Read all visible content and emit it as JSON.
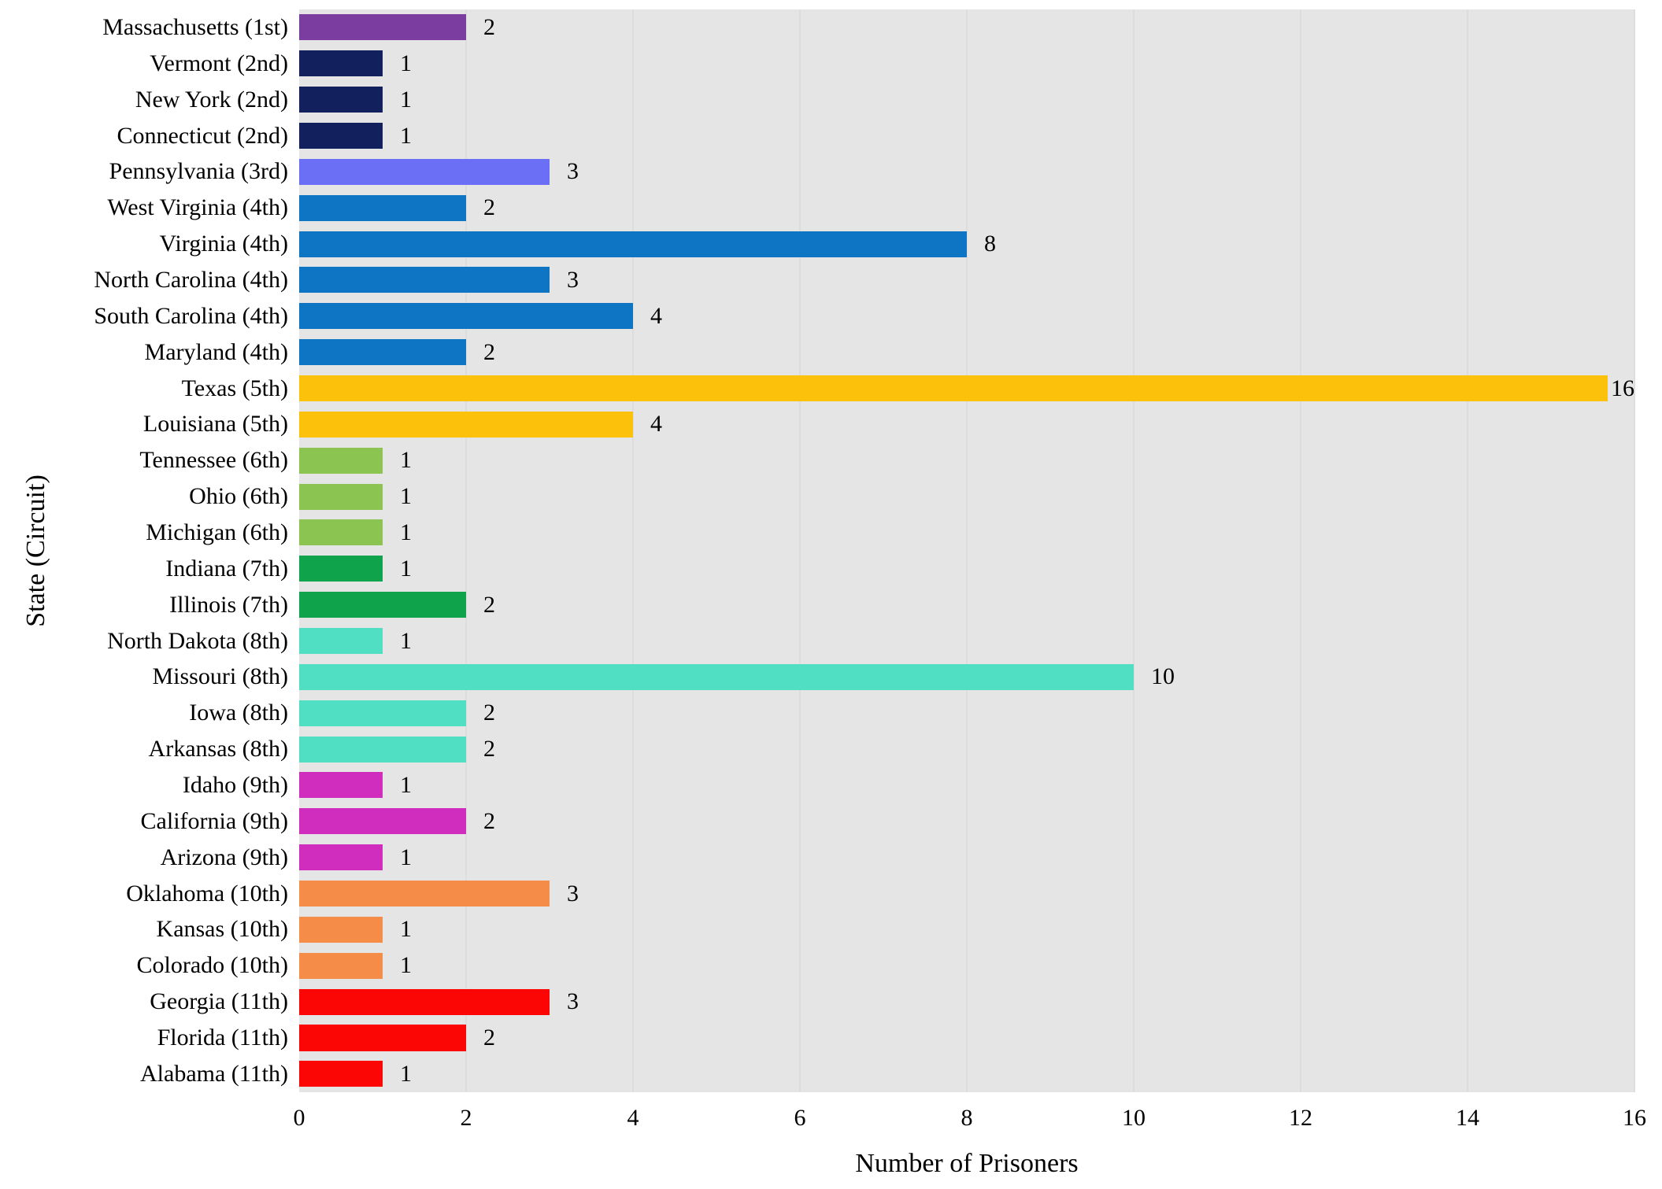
{
  "chart_data": {
    "type": "bar",
    "orientation": "horizontal",
    "title": "",
    "xlabel": "Number of Prisoners",
    "ylabel": "State (Circuit)",
    "xlim": [
      0,
      16
    ],
    "xticks": [
      0,
      2,
      4,
      6,
      8,
      10,
      12,
      14,
      16
    ],
    "grid": "vertical",
    "legend": "none",
    "plot_background": "#e5e5e5",
    "gridline_color": "#dddddd",
    "label_color": "#000000",
    "circuit_colors": {
      "1st": "#7b3da0",
      "2nd": "#12205e",
      "3rd": "#6a6ff5",
      "4th": "#0e75c5",
      "5th": "#fcc20b",
      "6th": "#8bc451",
      "7th": "#0fa34b",
      "8th": "#50dfc3",
      "9th": "#d02cbe",
      "10th": "#f58d49",
      "11th": "#fb0505"
    },
    "bars": [
      {
        "label": "Massachusetts (1st)",
        "circuit": "1st",
        "value": 2
      },
      {
        "label": "Vermont (2nd)",
        "circuit": "2nd",
        "value": 1
      },
      {
        "label": "New York (2nd)",
        "circuit": "2nd",
        "value": 1
      },
      {
        "label": "Connecticut (2nd)",
        "circuit": "2nd",
        "value": 1
      },
      {
        "label": "Pennsylvania (3rd)",
        "circuit": "3rd",
        "value": 3
      },
      {
        "label": "West Virginia (4th)",
        "circuit": "4th",
        "value": 2
      },
      {
        "label": "Virginia (4th)",
        "circuit": "4th",
        "value": 8
      },
      {
        "label": "North Carolina (4th)",
        "circuit": "4th",
        "value": 3
      },
      {
        "label": "South Carolina (4th)",
        "circuit": "4th",
        "value": 4
      },
      {
        "label": "Maryland (4th)",
        "circuit": "4th",
        "value": 2
      },
      {
        "label": "Texas (5th)",
        "circuit": "5th",
        "value": 16
      },
      {
        "label": "Louisiana (5th)",
        "circuit": "5th",
        "value": 4
      },
      {
        "label": "Tennessee (6th)",
        "circuit": "6th",
        "value": 1
      },
      {
        "label": "Ohio (6th)",
        "circuit": "6th",
        "value": 1
      },
      {
        "label": "Michigan (6th)",
        "circuit": "6th",
        "value": 1
      },
      {
        "label": "Indiana (7th)",
        "circuit": "7th",
        "value": 1
      },
      {
        "label": "Illinois (7th)",
        "circuit": "7th",
        "value": 2
      },
      {
        "label": "North Dakota (8th)",
        "circuit": "8th",
        "value": 1
      },
      {
        "label": "Missouri (8th)",
        "circuit": "8th",
        "value": 10
      },
      {
        "label": "Iowa (8th)",
        "circuit": "8th",
        "value": 2
      },
      {
        "label": "Arkansas (8th)",
        "circuit": "8th",
        "value": 2
      },
      {
        "label": "Idaho (9th)",
        "circuit": "9th",
        "value": 1
      },
      {
        "label": "California (9th)",
        "circuit": "9th",
        "value": 2
      },
      {
        "label": "Arizona (9th)",
        "circuit": "9th",
        "value": 1
      },
      {
        "label": "Oklahoma (10th)",
        "circuit": "10th",
        "value": 3
      },
      {
        "label": "Kansas (10th)",
        "circuit": "10th",
        "value": 1
      },
      {
        "label": "Colorado (10th)",
        "circuit": "10th",
        "value": 1
      },
      {
        "label": "Georgia (11th)",
        "circuit": "11th",
        "value": 3
      },
      {
        "label": "Florida (11th)",
        "circuit": "11th",
        "value": 2
      },
      {
        "label": "Alabama (11th)",
        "circuit": "11th",
        "value": 1
      }
    ]
  }
}
